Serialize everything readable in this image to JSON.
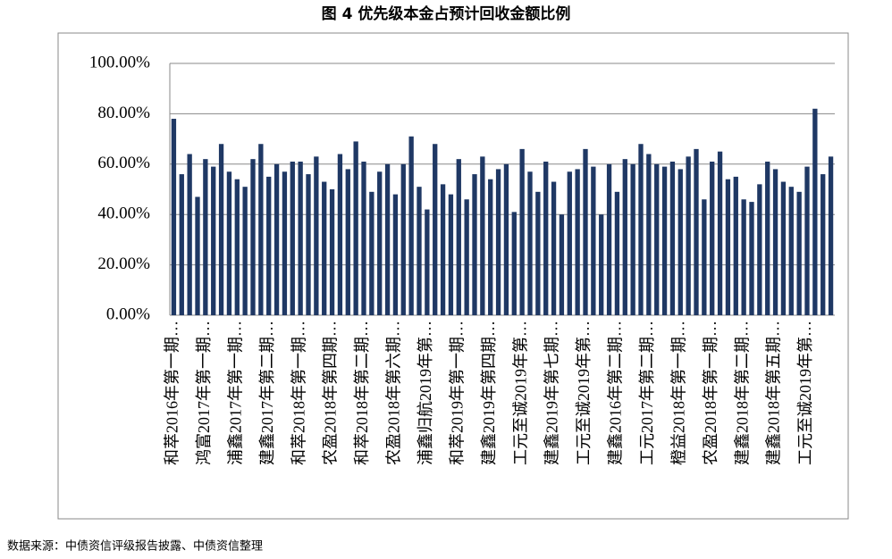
{
  "title": "图 4 优先级本金占预计回收金额比例",
  "source": "数据来源：中债资信评级报告披露、中债资信整理",
  "chart_data": {
    "type": "bar",
    "color": "#1f3864",
    "grid": true,
    "ylim": [
      0,
      100
    ],
    "yticks": [
      {
        "value": 0,
        "label": "0.00%"
      },
      {
        "value": 20,
        "label": "20.00%"
      },
      {
        "value": 40,
        "label": "40.00%"
      },
      {
        "value": 60,
        "label": "60.00%"
      },
      {
        "value": 80,
        "label": "80.00%"
      },
      {
        "value": 100,
        "label": "100.00%"
      }
    ],
    "categories": [
      "和萃2016年第一期…",
      null,
      null,
      null,
      "鸿富2017年第一期…",
      null,
      null,
      null,
      "浦鑫2017年第一期…",
      null,
      null,
      null,
      "建鑫2017年第二期…",
      null,
      null,
      null,
      "和萃2018年第一期…",
      null,
      null,
      null,
      "农盈2018年第四期…",
      null,
      null,
      null,
      "和萃2018年第二期…",
      null,
      null,
      null,
      "农盈2018年第六期…",
      null,
      null,
      null,
      "浦鑫归航2019年第…",
      null,
      null,
      null,
      "和萃2019年第一期…",
      null,
      null,
      null,
      "建鑫2019年第四期…",
      null,
      null,
      null,
      "工元至诚2019年第…",
      null,
      null,
      null,
      "建鑫2019年第七期…",
      null,
      null,
      null,
      "工元至诚2019年第…",
      null,
      null,
      null,
      "建鑫2016年第二期…",
      null,
      null,
      null,
      "工元2017年第二期…",
      null,
      null,
      null,
      "橙益2018年第一期…",
      null,
      null,
      null,
      "农盈2018年第一期…",
      null,
      null,
      null,
      "建鑫2018年第二期…",
      null,
      null,
      null,
      "建鑫2018年第五期…",
      null,
      null,
      null,
      "工元至诚2019年第…",
      null,
      null,
      null
    ],
    "values": [
      78,
      56,
      64,
      47,
      62,
      59,
      68,
      57,
      54,
      51,
      62,
      68,
      55,
      60,
      57,
      61,
      61,
      56,
      63,
      53,
      50,
      64,
      58,
      69,
      61,
      49,
      57,
      60,
      48,
      60,
      71,
      51,
      42,
      68,
      52,
      48,
      62,
      46,
      56,
      63,
      54,
      58,
      60,
      41,
      66,
      57,
      49,
      61,
      53,
      40,
      57,
      58,
      66,
      59,
      40,
      60,
      49,
      62,
      60,
      68,
      64,
      60,
      59,
      61,
      58,
      63,
      66,
      46,
      61,
      65,
      54,
      55,
      46,
      45,
      52,
      61,
      58,
      53,
      51,
      49,
      59,
      82,
      56,
      63
    ]
  }
}
